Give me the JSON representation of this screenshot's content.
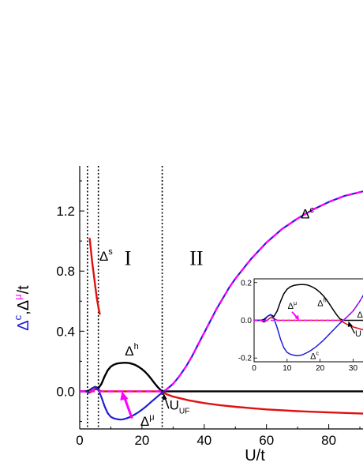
{
  "chart_data": {
    "type": "line",
    "xlabel": "U/t",
    "ylabel_parts": [
      {
        "text": "Δ",
        "color": "#1f1fd8"
      },
      {
        "text": "c",
        "color": "#1f1fd8",
        "sup": true
      },
      {
        "text": ",",
        "color": "#000000"
      },
      {
        "text": "Δ",
        "color": "#000000"
      },
      {
        "text": "μ",
        "color": "#ff00ff",
        "sup": true
      },
      {
        "text": "/t",
        "color": "#000000"
      }
    ],
    "xlim": [
      0,
      91
    ],
    "ylim": [
      -0.25,
      1.5
    ],
    "xticks": [
      0,
      20,
      40,
      60,
      80
    ],
    "xtick_labels": [
      "0",
      "20",
      "40",
      "60",
      "80"
    ],
    "yticks": [
      0.0,
      0.4,
      0.8,
      1.2
    ],
    "ytick_labels": [
      "0.0",
      "0.4",
      "0.8",
      "1.2"
    ],
    "vlines": [
      2.5,
      6.0,
      26.5
    ],
    "region_labels": [
      {
        "text": "I",
        "x": 15.5,
        "y": 0.84
      },
      {
        "text": "II",
        "x": 37.5,
        "y": 0.84
      }
    ],
    "annotations": [
      {
        "base": "Δ",
        "sup": "s",
        "x": 6.3,
        "y": 0.87
      },
      {
        "base": "Δ",
        "sup": "h",
        "x": 14.5,
        "y": 0.24
      },
      {
        "base": "Δ",
        "sup": "μ",
        "x": 19.5,
        "y": -0.23
      },
      {
        "base": "Δ",
        "sup": "c",
        "x": 71.0,
        "y": 1.15
      },
      {
        "base": "U",
        "sub": "UF",
        "x": 28.8,
        "y": -0.12
      }
    ],
    "series": [
      {
        "key": "s",
        "color": "#e01010",
        "x": [
          3.2,
          3.6,
          4.0,
          4.5,
          5.0,
          5.5,
          6.0,
          6.5
        ],
        "y": [
          1.02,
          0.94,
          0.86,
          0.78,
          0.7,
          0.62,
          0.56,
          0.51
        ]
      },
      {
        "key": "red_tail",
        "color": "#e01010",
        "x": [
          0,
          2,
          3,
          4,
          5,
          6,
          7,
          8,
          9,
          10,
          12,
          14,
          16,
          18,
          20,
          22,
          24,
          26,
          28,
          30,
          35,
          40,
          45,
          50,
          55,
          60,
          70,
          80,
          91
        ],
        "y": [
          0,
          0,
          -0.01,
          0,
          0.015,
          0.01,
          0,
          0,
          0,
          0,
          0,
          0,
          0,
          0,
          0,
          0,
          0,
          0,
          -0.02,
          -0.035,
          -0.06,
          -0.078,
          -0.092,
          -0.103,
          -0.112,
          -0.12,
          -0.132,
          -0.14,
          -0.148
        ]
      },
      {
        "key": "h",
        "color": "#000000",
        "x": [
          0,
          2,
          3,
          4,
          5,
          6,
          7,
          8,
          9,
          10,
          11,
          12,
          13,
          14,
          15,
          16,
          17,
          18,
          19,
          20,
          21,
          22,
          23,
          24,
          25,
          26,
          27,
          28,
          30,
          35,
          40,
          50,
          60,
          70,
          80,
          91
        ],
        "y": [
          0,
          0,
          0.005,
          0.02,
          0.03,
          0.02,
          0.05,
          0.1,
          0.14,
          0.165,
          0.178,
          0.185,
          0.188,
          0.19,
          0.19,
          0.188,
          0.182,
          0.174,
          0.162,
          0.148,
          0.13,
          0.108,
          0.082,
          0.055,
          0.03,
          0.008,
          0,
          0,
          0,
          0,
          0,
          0,
          0,
          0,
          0,
          0
        ]
      },
      {
        "key": "c",
        "color": "#1f1fd8",
        "x": [
          0,
          2,
          3,
          4,
          5,
          6,
          7,
          8,
          9,
          10,
          11,
          12,
          13,
          14,
          15,
          16,
          17,
          18,
          19,
          20,
          21,
          22,
          23,
          24,
          25,
          26,
          27,
          28,
          30,
          32,
          34,
          36,
          38,
          40,
          42,
          44,
          46,
          48,
          50,
          55,
          60,
          65,
          70,
          75,
          80,
          85,
          91
        ],
        "y": [
          0,
          0,
          -0.005,
          0.02,
          0.03,
          0.01,
          -0.04,
          -0.1,
          -0.145,
          -0.17,
          -0.18,
          -0.185,
          -0.188,
          -0.186,
          -0.18,
          -0.172,
          -0.162,
          -0.15,
          -0.137,
          -0.122,
          -0.106,
          -0.088,
          -0.07,
          -0.052,
          -0.034,
          -0.016,
          0.0,
          0.015,
          0.05,
          0.1,
          0.16,
          0.23,
          0.31,
          0.39,
          0.47,
          0.55,
          0.62,
          0.69,
          0.75,
          0.88,
          0.99,
          1.08,
          1.15,
          1.21,
          1.26,
          1.3,
          1.33
        ]
      },
      {
        "key": "mu",
        "color": "#ff00ff",
        "dash": true,
        "x": [
          0,
          5,
          10,
          15,
          20,
          25,
          27,
          28,
          30,
          32,
          34,
          36,
          38,
          40,
          42,
          44,
          46,
          48,
          50,
          55,
          60,
          65,
          70,
          75,
          80,
          85,
          91
        ],
        "y": [
          0,
          0,
          0,
          0,
          0,
          0,
          0,
          0.015,
          0.05,
          0.1,
          0.16,
          0.23,
          0.31,
          0.39,
          0.47,
          0.55,
          0.62,
          0.69,
          0.75,
          0.88,
          0.99,
          1.08,
          1.15,
          1.21,
          1.26,
          1.3,
          1.33
        ]
      }
    ],
    "inset": {
      "xlim": [
        0,
        33
      ],
      "ylim": [
        -0.22,
        0.22
      ],
      "xticks": [
        0,
        10,
        20,
        30
      ],
      "xtick_labels": [
        "0",
        "10",
        "20",
        "30"
      ],
      "yticks": [
        -0.2,
        0.0,
        0.2
      ],
      "ytick_labels": [
        "-0.2",
        "0.0",
        "0.2"
      ],
      "annotations": [
        {
          "base": "Δ",
          "sup": "μ",
          "x": 10.2,
          "y": 0.06
        },
        {
          "base": "Δ",
          "sup": "h",
          "x": 19.2,
          "y": 0.075
        },
        {
          "base": "Δ",
          "sup": "c",
          "x": 17.0,
          "y": -0.205
        },
        {
          "base": "Δ",
          "sup": "",
          "x": 31.2,
          "y": 0.015
        },
        {
          "base": "U",
          "sub": "",
          "x": 30.6,
          "y": -0.085
        }
      ]
    }
  }
}
